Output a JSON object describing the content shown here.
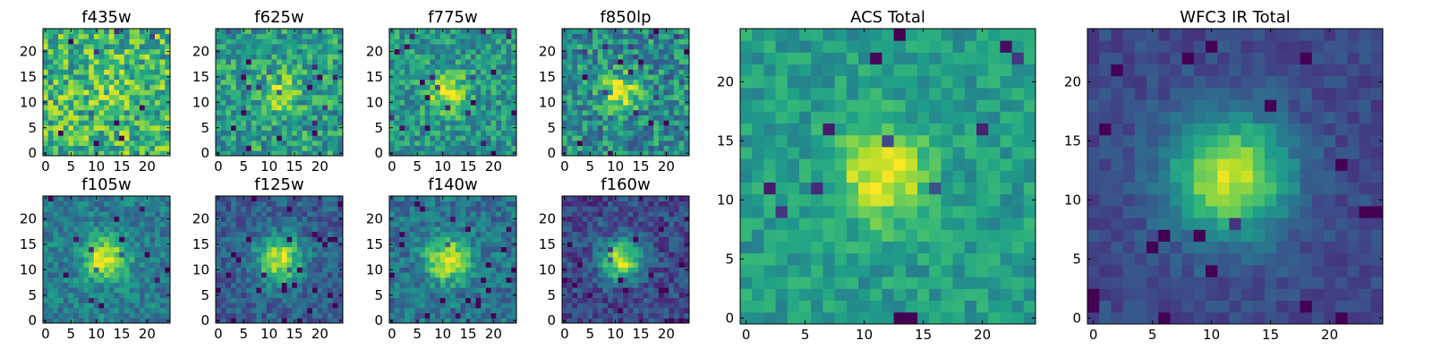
{
  "chart_data": [
    {
      "type": "heatmap",
      "title": "f435w",
      "seed": 11,
      "center": [
        13,
        12
      ],
      "sigma": 3.0,
      "amp": 0.1,
      "noise": 0.55,
      "base": 0.66,
      "xticks": [
        0,
        5,
        10,
        15,
        20
      ],
      "yticks": [
        0,
        5,
        10,
        15,
        20
      ],
      "xlim": [
        0,
        24
      ],
      "ylim": [
        0,
        24
      ]
    },
    {
      "type": "heatmap",
      "title": "f625w",
      "seed": 23,
      "center": [
        12,
        12
      ],
      "sigma": 2.8,
      "amp": 0.3,
      "noise": 0.45,
      "base": 0.55,
      "xticks": [
        0,
        5,
        10,
        15,
        20
      ],
      "yticks": [
        0,
        5,
        10,
        15,
        20
      ],
      "xlim": [
        0,
        24
      ],
      "ylim": [
        0,
        24
      ]
    },
    {
      "type": "heatmap",
      "title": "f775w",
      "seed": 37,
      "center": [
        11,
        12
      ],
      "sigma": 2.6,
      "amp": 0.45,
      "noise": 0.4,
      "base": 0.52,
      "xticks": [
        0,
        5,
        10,
        15,
        20
      ],
      "yticks": [
        0,
        5,
        10,
        15,
        20
      ],
      "xlim": [
        0,
        24
      ],
      "ylim": [
        0,
        24
      ]
    },
    {
      "type": "heatmap",
      "title": "f850lp",
      "seed": 41,
      "center": [
        11,
        12
      ],
      "sigma": 2.4,
      "amp": 0.5,
      "noise": 0.48,
      "base": 0.48,
      "xticks": [
        0,
        5,
        10,
        15,
        20
      ],
      "yticks": [
        0,
        5,
        10,
        15,
        20
      ],
      "xlim": [
        0,
        24
      ],
      "ylim": [
        0,
        24
      ]
    },
    {
      "type": "heatmap",
      "title": "f105w",
      "seed": 53,
      "center": [
        12,
        12
      ],
      "sigma": 3.0,
      "amp": 0.55,
      "noise": 0.3,
      "base": 0.42,
      "xticks": [
        0,
        5,
        10,
        15,
        20
      ],
      "yticks": [
        0,
        5,
        10,
        15,
        20
      ],
      "xlim": [
        0,
        24
      ],
      "ylim": [
        0,
        24
      ]
    },
    {
      "type": "heatmap",
      "title": "f125w",
      "seed": 67,
      "center": [
        12,
        12
      ],
      "sigma": 3.2,
      "amp": 0.62,
      "noise": 0.28,
      "base": 0.3,
      "xticks": [
        0,
        5,
        10,
        15,
        20
      ],
      "yticks": [
        0,
        5,
        10,
        15,
        20
      ],
      "xlim": [
        0,
        24
      ],
      "ylim": [
        0,
        24
      ]
    },
    {
      "type": "heatmap",
      "title": "f140w",
      "seed": 71,
      "center": [
        11,
        12
      ],
      "sigma": 3.0,
      "amp": 0.58,
      "noise": 0.32,
      "base": 0.38,
      "xticks": [
        0,
        5,
        10,
        15,
        20
      ],
      "yticks": [
        0,
        5,
        10,
        15,
        20
      ],
      "xlim": [
        0,
        24
      ],
      "ylim": [
        0,
        24
      ]
    },
    {
      "type": "heatmap",
      "title": "f160w",
      "seed": 83,
      "center": [
        11,
        12
      ],
      "sigma": 2.8,
      "amp": 0.7,
      "noise": 0.3,
      "base": 0.22,
      "xticks": [
        0,
        5,
        10,
        15,
        20
      ],
      "yticks": [
        0,
        5,
        10,
        15,
        20
      ],
      "xlim": [
        0,
        24
      ],
      "ylim": [
        0,
        24
      ]
    },
    {
      "type": "heatmap",
      "title": "ACS Total",
      "seed": 97,
      "center": [
        11.5,
        12
      ],
      "sigma": 2.6,
      "amp": 0.45,
      "noise": 0.25,
      "base": 0.55,
      "xticks": [
        0,
        5,
        10,
        15,
        20
      ],
      "yticks": [
        0,
        5,
        10,
        15,
        20
      ],
      "xlim": [
        0,
        24
      ],
      "ylim": [
        0,
        24
      ]
    },
    {
      "type": "heatmap",
      "title": "WFC3 IR Total",
      "seed": 101,
      "center": [
        11.5,
        12
      ],
      "sigma": 3.6,
      "amp": 0.7,
      "noise": 0.15,
      "base": 0.22,
      "xticks": [
        0,
        5,
        10,
        15,
        20
      ],
      "yticks": [
        0,
        5,
        10,
        15,
        20
      ],
      "xlim": [
        0,
        24
      ],
      "ylim": [
        0,
        24
      ]
    }
  ],
  "colormap": [
    "#440154",
    "#482878",
    "#3e4989",
    "#31688e",
    "#26828e",
    "#1f9e89",
    "#35b779",
    "#6ece58",
    "#b5de2b",
    "#fde725"
  ]
}
